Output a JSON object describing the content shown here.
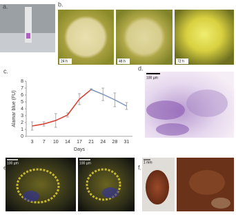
{
  "panels": {
    "a": {
      "label": "a."
    },
    "b": {
      "label": "b.",
      "images": [
        "24 h",
        "48 h",
        "72 h"
      ]
    },
    "c": {
      "label": "c."
    },
    "d": {
      "label": "d.",
      "scale": "100 µm"
    },
    "e": {
      "label": "e.",
      "scales": [
        "100 µm",
        "100 µm"
      ]
    },
    "f": {
      "label": "f.",
      "scale": "1 mm"
    }
  },
  "chart_data": {
    "type": "line",
    "x_label": "Days",
    "y_label": "Alamar blue (FU)",
    "categories": [
      "3",
      "7",
      "10",
      "14",
      "17",
      "21",
      "24",
      "28",
      "31"
    ],
    "series": [
      {
        "color": "#d93a2b",
        "values": [
          1.5,
          1.8,
          2.3,
          3.1,
          5.4,
          6.8,
          null,
          null,
          null
        ],
        "errors": [
          0.6,
          0.3,
          1.0,
          0.3,
          0.8,
          0.1,
          null,
          null,
          null
        ]
      },
      {
        "color": "#7a93b8",
        "values": [
          null,
          null,
          null,
          null,
          null,
          6.8,
          6.1,
          5.3,
          4.4
        ],
        "errors": [
          null,
          null,
          null,
          null,
          null,
          0.1,
          0.9,
          1.0,
          0.5
        ]
      }
    ],
    "ylim": [
      0,
      8
    ],
    "yticks": [
      0,
      1,
      2,
      3,
      4,
      5,
      6,
      7,
      8
    ]
  }
}
